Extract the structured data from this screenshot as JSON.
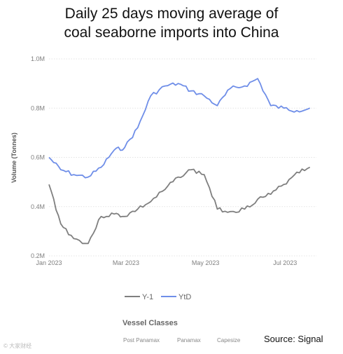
{
  "chart_data": {
    "type": "line",
    "title": "Daily 25 days moving average of coal seaborne imports into China",
    "title_lines": [
      "Daily 25 days moving average of",
      "coal seaborne imports into China"
    ],
    "ylabel": "Volume (Tonnes)",
    "xlabel": "",
    "x_ticks": [
      "Jan 2023",
      "Mar 2023",
      "May 2023",
      "Jul 2023"
    ],
    "y_ticks": [
      "0.2M",
      "0.4M",
      "0.6M",
      "0.8M",
      "1.0M"
    ],
    "ylim": [
      0.2,
      1.0
    ],
    "y_unit": "million tonnes",
    "grid": true,
    "legend_position": "bottom",
    "x_dates": [
      "2023-01-01",
      "2023-01-10",
      "2023-01-20",
      "2023-01-31",
      "2023-02-10",
      "2023-02-20",
      "2023-02-28",
      "2023-03-10",
      "2023-03-20",
      "2023-03-31",
      "2023-04-10",
      "2023-04-20",
      "2023-04-30",
      "2023-05-10",
      "2023-05-20",
      "2023-05-31",
      "2023-06-10",
      "2023-06-20",
      "2023-06-30",
      "2023-07-10",
      "2023-07-20"
    ],
    "series": [
      {
        "name": "Y-1",
        "color": "#7f7f7f",
        "values": [
          0.49,
          0.33,
          0.27,
          0.25,
          0.36,
          0.37,
          0.36,
          0.39,
          0.42,
          0.47,
          0.52,
          0.55,
          0.53,
          0.39,
          0.38,
          0.39,
          0.43,
          0.45,
          0.49,
          0.54,
          0.56
        ]
      },
      {
        "name": "YtD",
        "color": "#6f8ee8",
        "values": [
          0.6,
          0.55,
          0.53,
          0.52,
          0.56,
          0.63,
          0.64,
          0.72,
          0.85,
          0.89,
          0.9,
          0.87,
          0.85,
          0.81,
          0.88,
          0.89,
          0.92,
          0.81,
          0.8,
          0.79,
          0.8
        ]
      }
    ]
  },
  "legend_text": {
    "vessel_classes_title": "Vessel Classes",
    "vessel_classes": [
      "Post Panamax",
      "Panamax",
      "Capesize"
    ]
  },
  "source_text": "Source: Signal",
  "watermark_text": "© 大家财经"
}
